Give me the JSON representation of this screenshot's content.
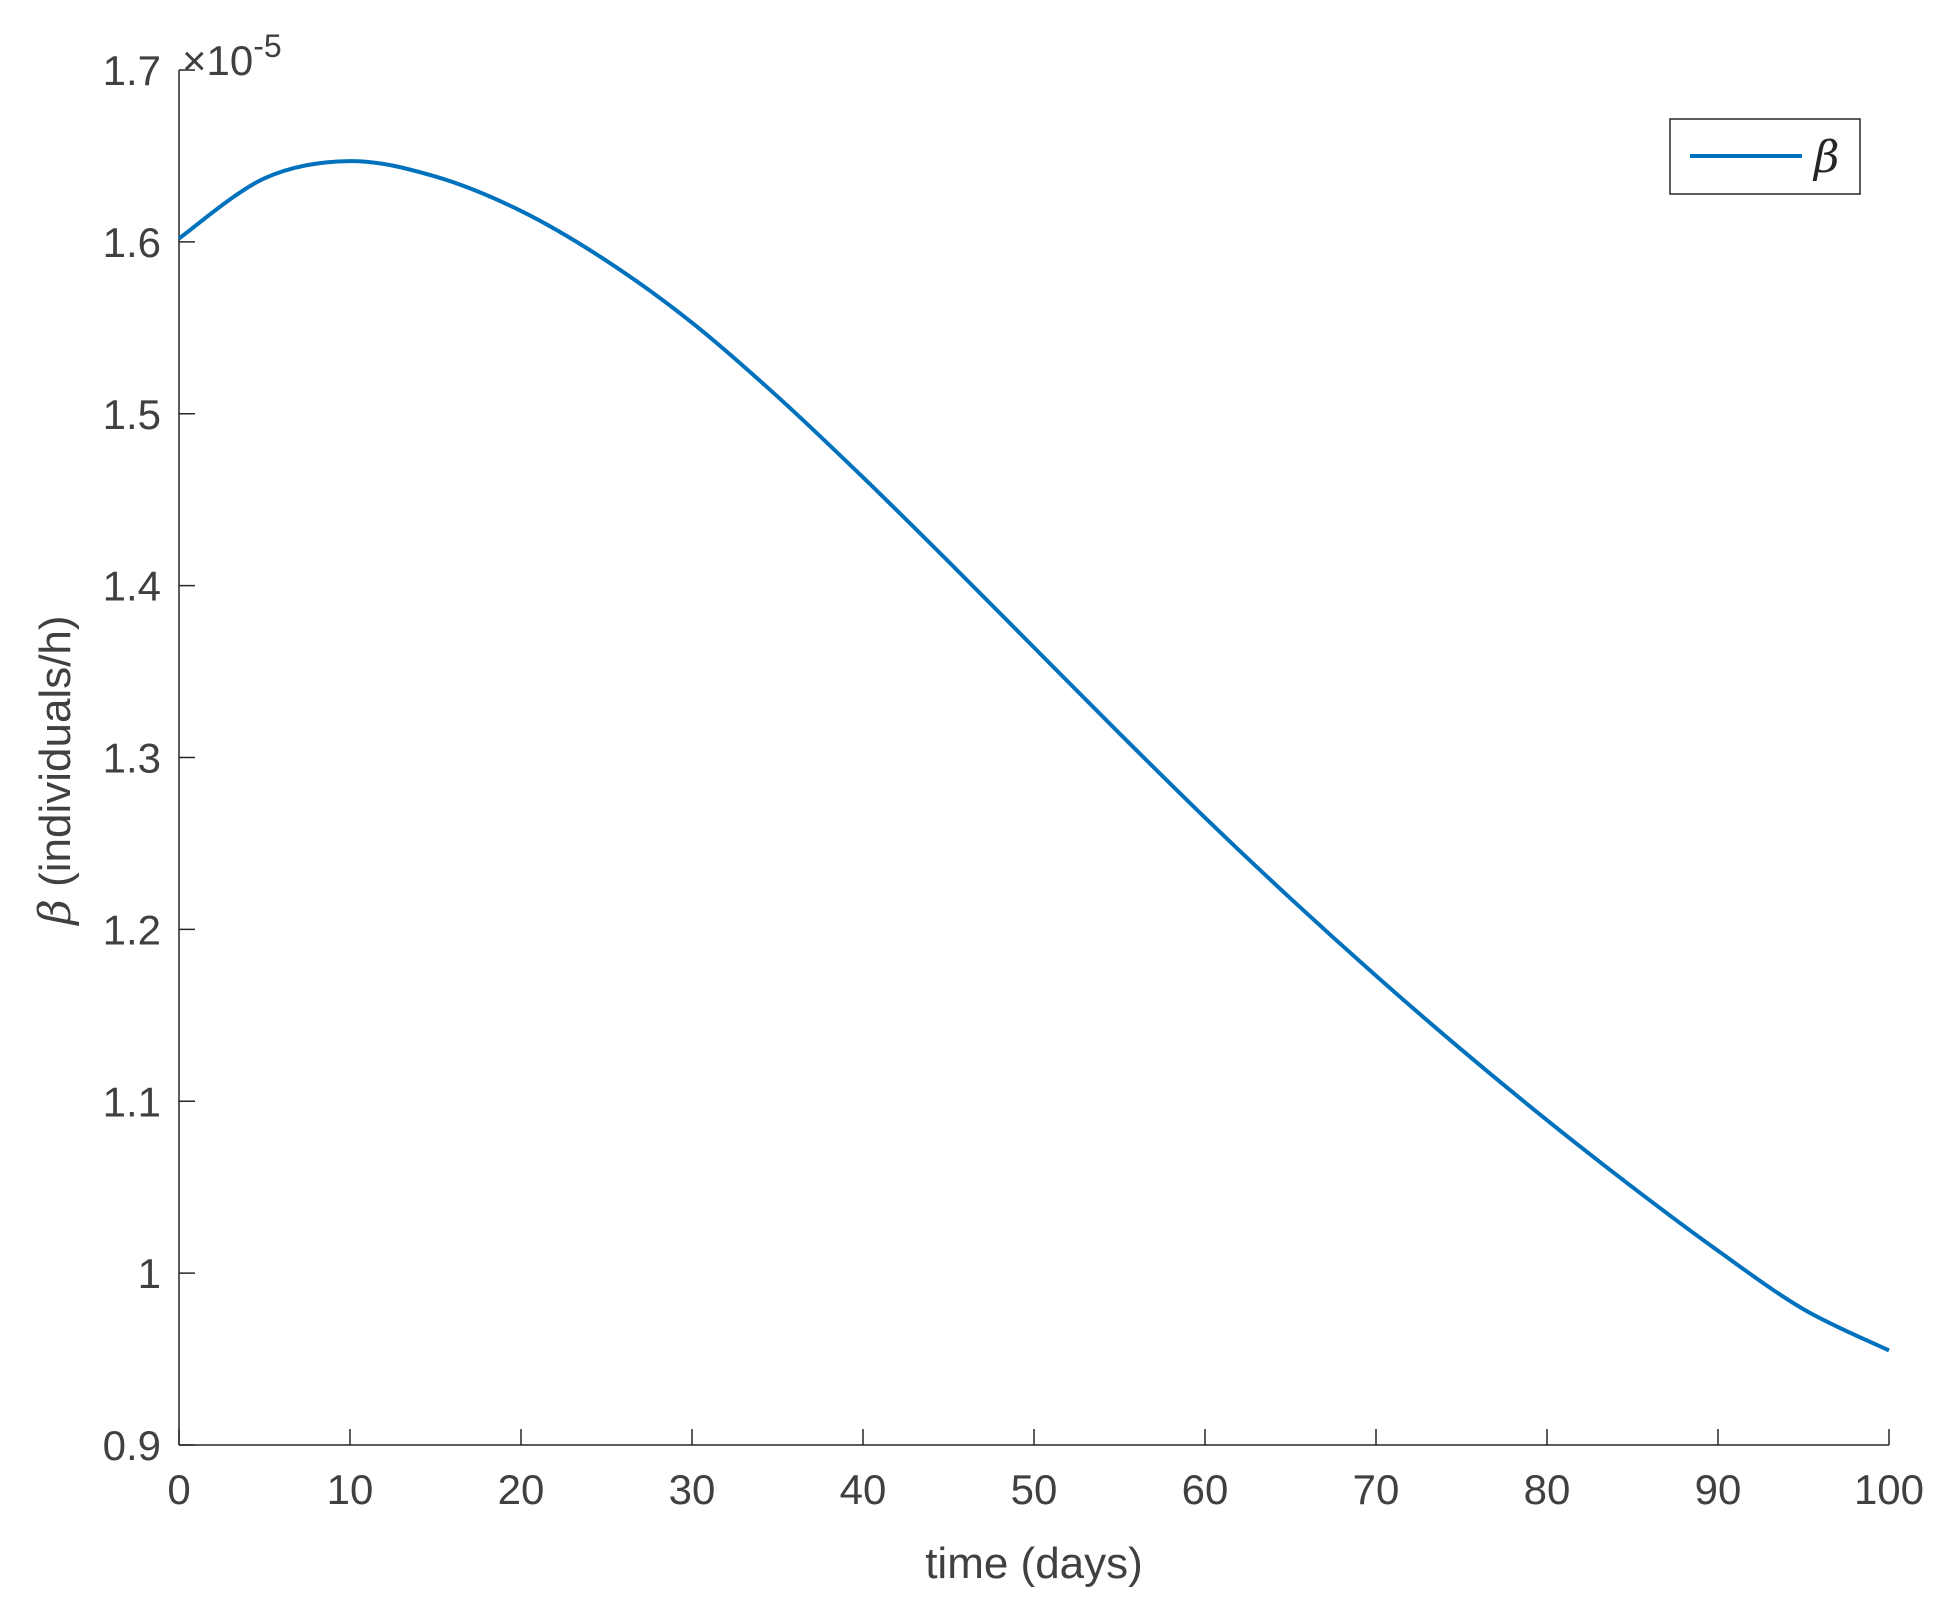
{
  "chart_data": {
    "type": "line",
    "title": "",
    "xlabel": "time (days)",
    "ylabel": {
      "symbol": "β",
      "text": " (individuals/h)"
    },
    "xlim": [
      0,
      100
    ],
    "ylim": [
      0.9,
      1.7
    ],
    "x_ticks": [
      0,
      10,
      20,
      30,
      40,
      50,
      60,
      70,
      80,
      90,
      100
    ],
    "x_tick_labels": [
      "0",
      "10",
      "20",
      "30",
      "40",
      "50",
      "60",
      "70",
      "80",
      "90",
      "100"
    ],
    "y_ticks": [
      0.9,
      1.0,
      1.1,
      1.2,
      1.3,
      1.4,
      1.5,
      1.6,
      1.7
    ],
    "y_tick_labels": [
      "0.9",
      "1",
      "1.1",
      "1.2",
      "1.3",
      "1.4",
      "1.5",
      "1.6",
      "1.7"
    ],
    "y_multiplier": {
      "prefix": "×10",
      "exponent": "-5"
    },
    "grid": false,
    "legend": {
      "placement": "top-right",
      "entries": [
        "β"
      ]
    },
    "series": [
      {
        "name": "β",
        "color": "#0072BD",
        "x": [
          0,
          5,
          10,
          15,
          20,
          25,
          30,
          35,
          40,
          45,
          50,
          55,
          60,
          65,
          70,
          75,
          80,
          85,
          90,
          95,
          100
        ],
        "y": [
          1.602,
          1.637,
          1.647,
          1.638,
          1.618,
          1.589,
          1.553,
          1.51,
          1.463,
          1.414,
          1.364,
          1.314,
          1.265,
          1.218,
          1.173,
          1.13,
          1.089,
          1.05,
          1.013,
          0.979,
          0.955
        ]
      }
    ]
  }
}
